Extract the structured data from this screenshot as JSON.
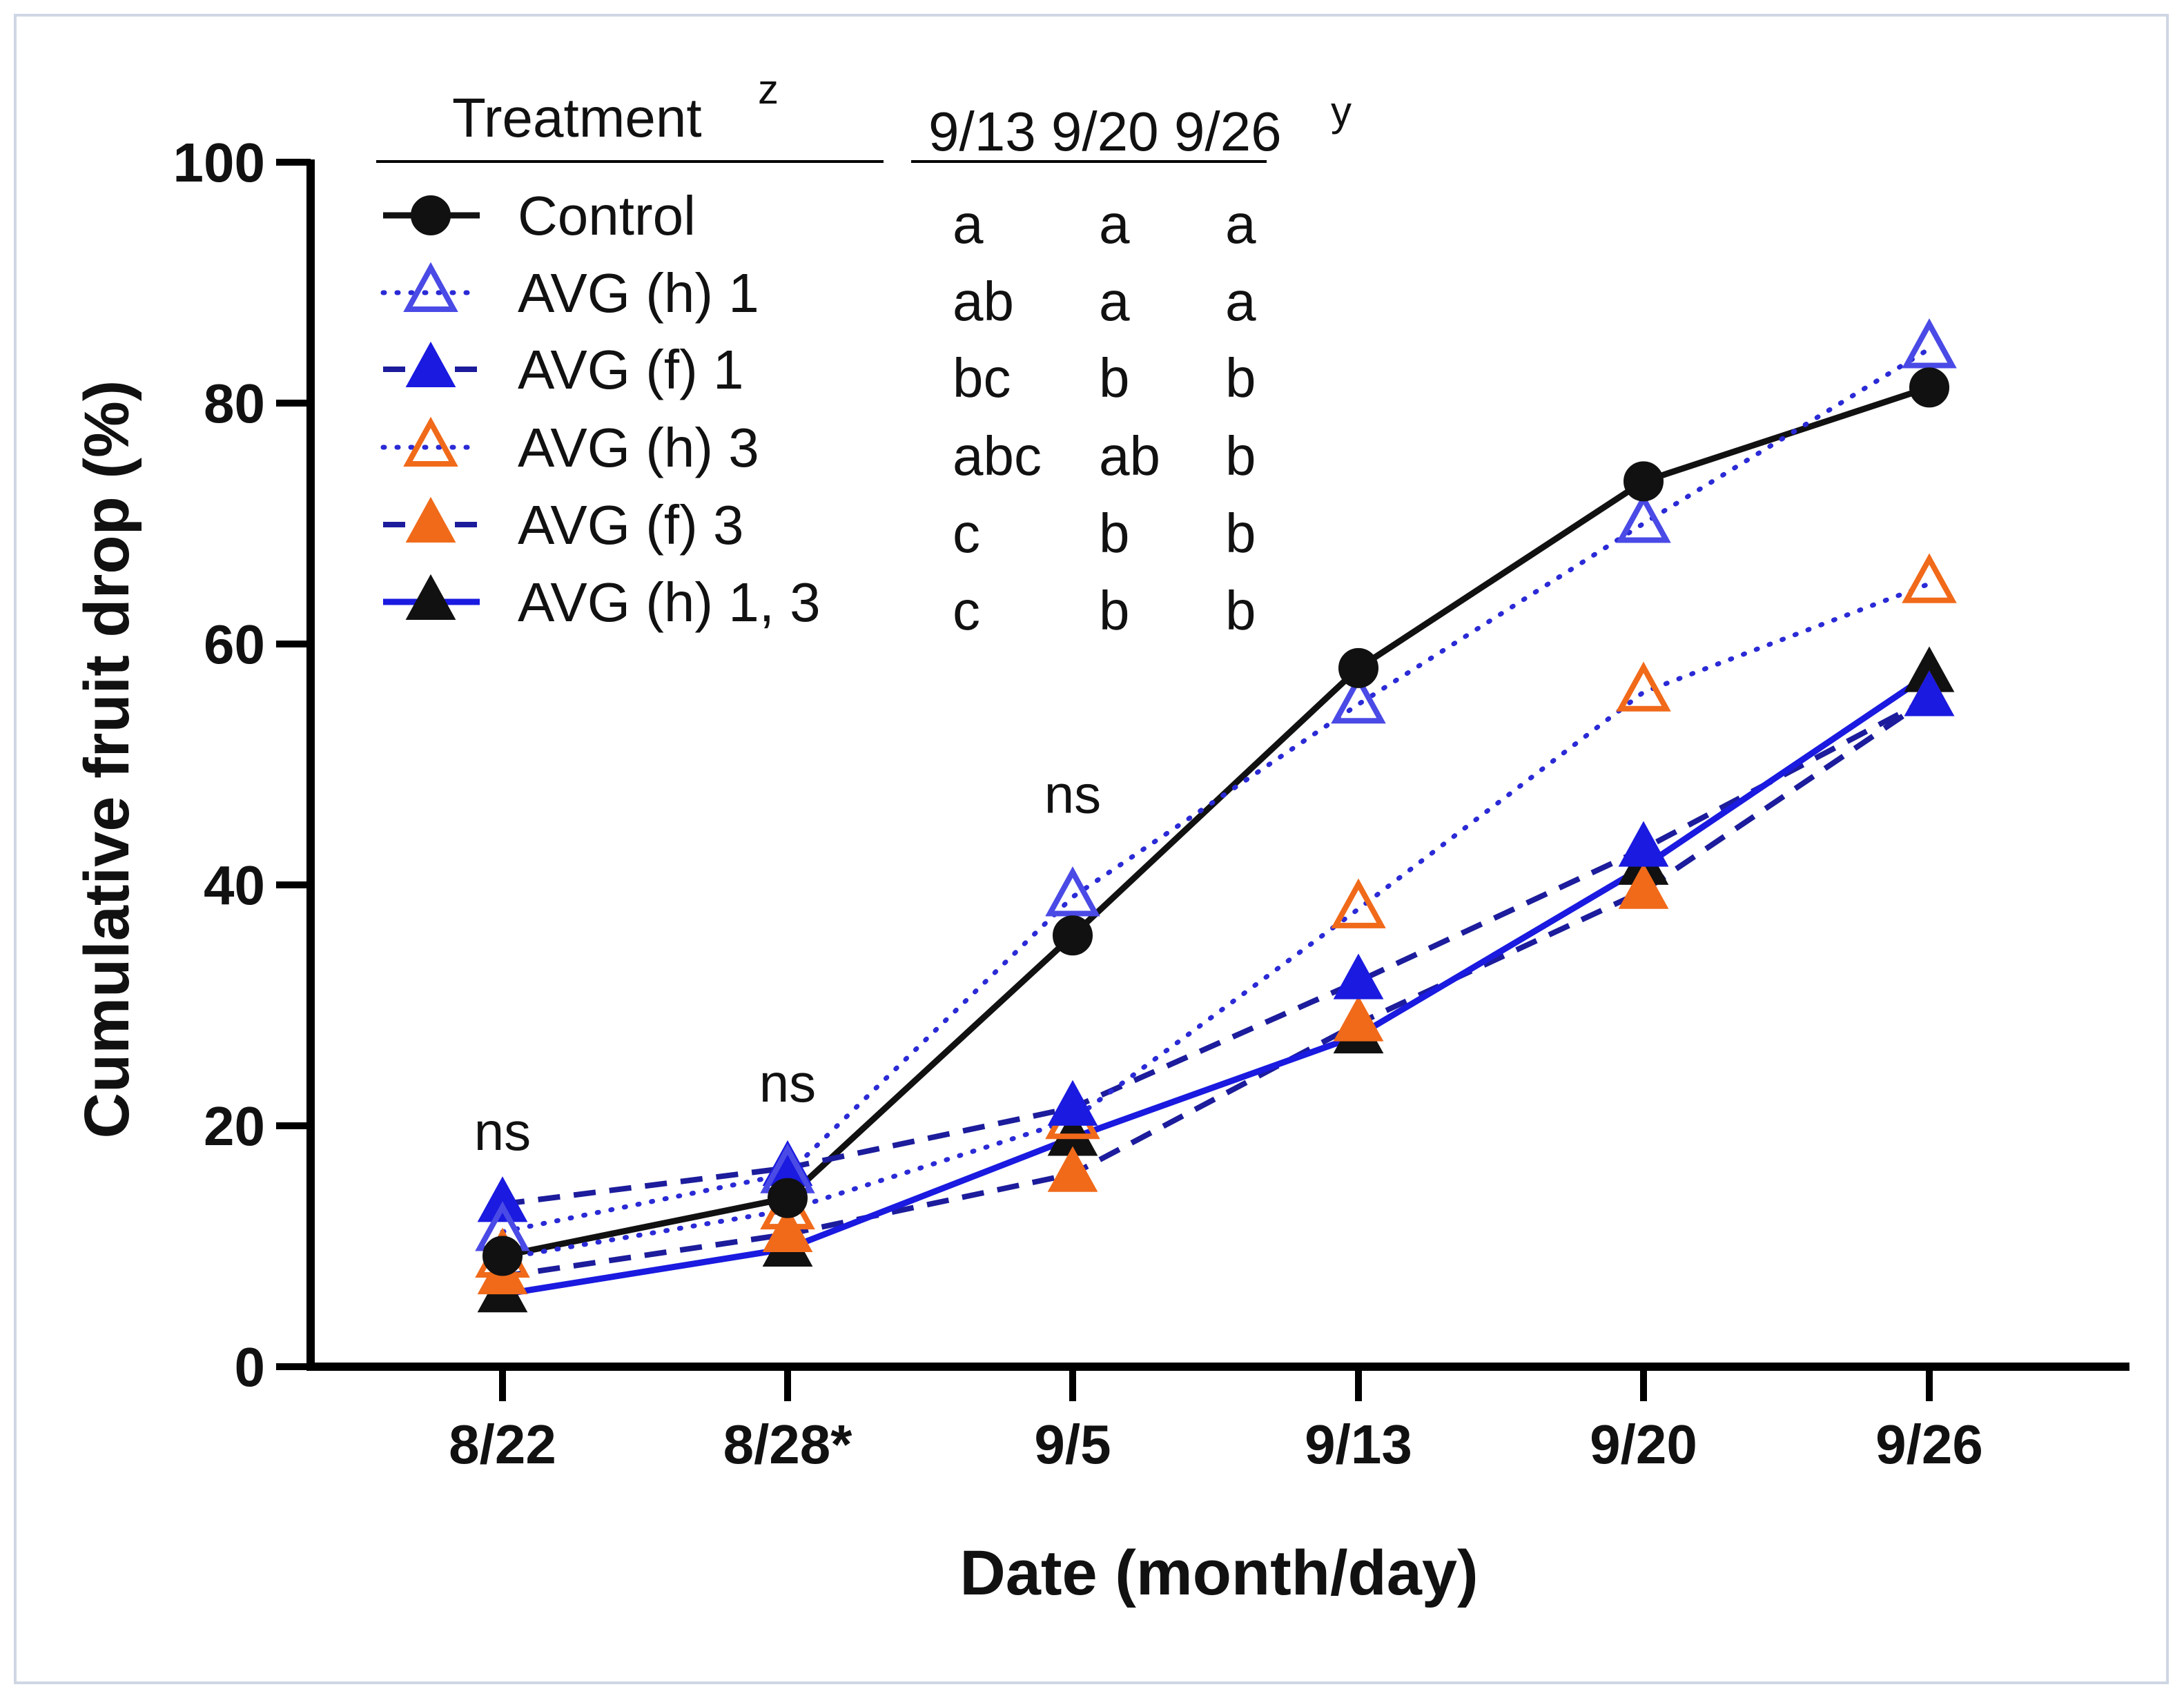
{
  "chart_data": {
    "type": "line",
    "xlabel": "Date (month/day)",
    "ylabel": "Cumulative fruit drop (%)",
    "ylim": [
      0,
      100
    ],
    "yticks": [
      0,
      20,
      40,
      60,
      80,
      100
    ],
    "categories": [
      "8/22",
      "8/28*",
      "9/5",
      "9/13",
      "9/20",
      "9/26"
    ],
    "series": [
      {
        "name": "Control",
        "key": "control",
        "color": "#111111",
        "marker": "circle",
        "fill": true,
        "dash": "solid",
        "values": [
          9.2,
          14.0,
          35.8,
          58.0,
          73.5,
          81.3
        ]
      },
      {
        "name": "AVG (h) 1",
        "key": "avg_h1",
        "color": "#4a4ae6",
        "marker": "triangle",
        "fill": false,
        "dash": "dotted",
        "values": [
          11.2,
          16.0,
          39.0,
          55.0,
          70.0,
          84.5
        ]
      },
      {
        "name": "AVG (f) 1",
        "key": "avg_f1",
        "color": "#1a1ae0",
        "marker": "triangle",
        "fill": true,
        "dash": "dashed",
        "values": [
          13.5,
          16.5,
          21.5,
          32.0,
          43.0,
          55.5
        ]
      },
      {
        "name": "AVG (h) 3",
        "key": "avg_h3",
        "color": "#f06a1a",
        "marker": "triangle",
        "fill": false,
        "dash": "dotted-blue",
        "values": [
          9.0,
          13.0,
          20.5,
          38.0,
          56.0,
          65.0
        ]
      },
      {
        "name": "AVG (f) 3",
        "key": "avg_f3",
        "color": "#f06a1a",
        "marker": "triangle",
        "fill": true,
        "dash": "dashed-blue",
        "values": [
          7.5,
          11.0,
          16.0,
          28.5,
          39.5,
          55.5
        ]
      },
      {
        "name": "AVG (h) 1, 3",
        "key": "avg_h13",
        "color": "#111111",
        "marker": "triangle",
        "fill": true,
        "dash": "solid-blue",
        "values": [
          6.0,
          9.8,
          19.0,
          27.5,
          41.5,
          57.5
        ]
      }
    ],
    "annotations": [
      {
        "category": "8/22",
        "text": "ns",
        "y": 18
      },
      {
        "category": "8/28*",
        "text": "ns",
        "y": 22
      },
      {
        "category": "9/5",
        "text": "ns",
        "y": 46
      }
    ],
    "legend": {
      "title": "Treatment",
      "title_sup": "z",
      "letters_header": "9/13 9/20 9/26",
      "letters_sup": "y",
      "letters": [
        [
          "a",
          "a",
          "a"
        ],
        [
          "ab",
          "a",
          "a"
        ],
        [
          "bc",
          "b",
          "b"
        ],
        [
          "abc",
          "ab",
          "b"
        ],
        [
          "c",
          "b",
          "b"
        ],
        [
          "c",
          "b",
          "b"
        ]
      ]
    }
  }
}
